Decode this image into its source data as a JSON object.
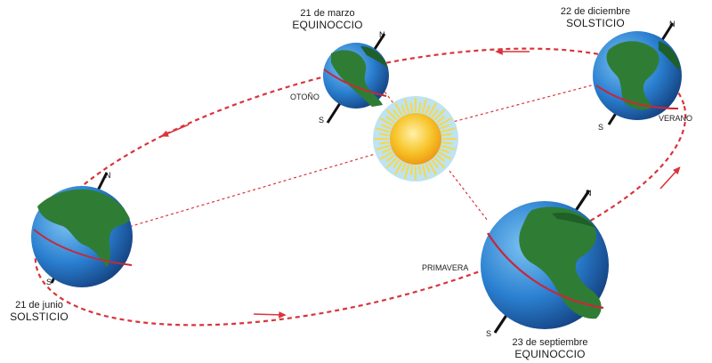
{
  "positions": {
    "march": {
      "date": "21 de marzo",
      "kind": "EQUINOCCIO",
      "season": "OTOÑO"
    },
    "december": {
      "date": "22 de diciembre",
      "kind": "SOLSTICIO",
      "season": "VERANO"
    },
    "june": {
      "date": "21 de junio",
      "kind": "SOLSTICIO",
      "season": ""
    },
    "september": {
      "date": "23 de septiembre",
      "kind": "EQUINOCCIO",
      "season": "PRIMAVERA"
    }
  },
  "axis_labels": {
    "north": "N",
    "south": "S"
  },
  "colors": {
    "orbit": "#d9343c",
    "sun_rays": "#f6d84a",
    "sun_core": "#f4b21f",
    "sun_halo": "#bfe3ef",
    "ocean": "#2a7fd0",
    "land": "#2f7d34",
    "equator": "#c8283a"
  }
}
